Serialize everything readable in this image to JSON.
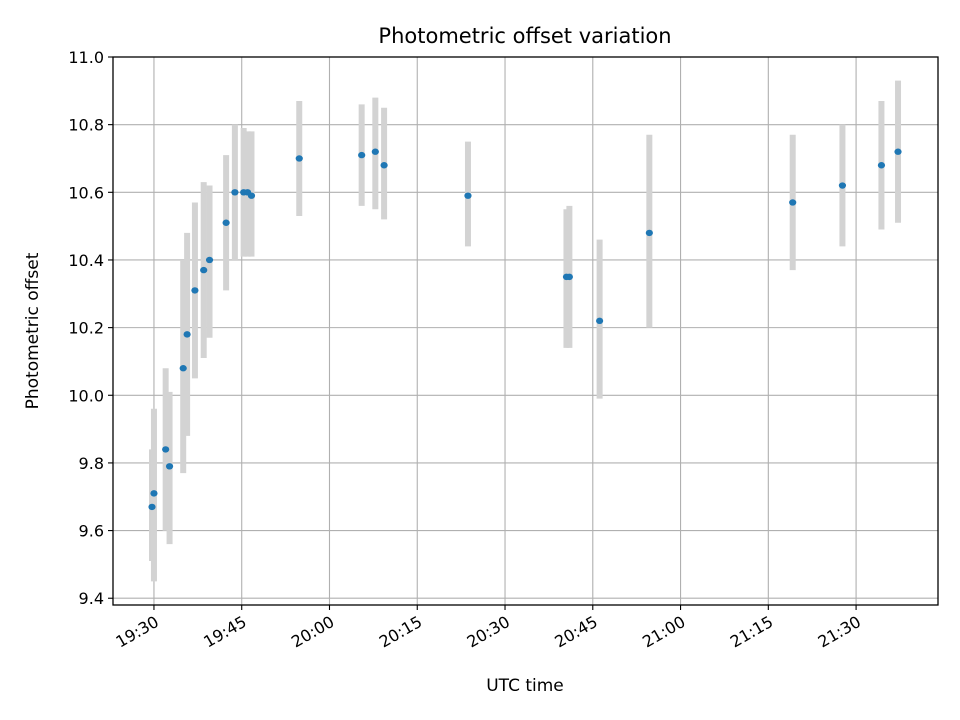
{
  "chart_data": {
    "type": "scatter",
    "title": "Photometric offset variation",
    "xlabel": "UTC time",
    "ylabel": "Photometric offset",
    "x_unit": "time of day (HH:MM)",
    "xlim": [
      "19:23",
      "21:44"
    ],
    "ylim": [
      9.38,
      11.0
    ],
    "x_ticks": [
      "19:30",
      "19:45",
      "20:00",
      "20:15",
      "20:30",
      "20:45",
      "21:00",
      "21:15",
      "21:30"
    ],
    "y_ticks": [
      "9.4",
      "9.6",
      "9.8",
      "10.0",
      "10.2",
      "10.4",
      "10.6",
      "10.8",
      "11.0"
    ],
    "y_tick_values": [
      9.4,
      9.6,
      9.8,
      10.0,
      10.2,
      10.4,
      10.6,
      10.8,
      11.0
    ],
    "grid": true,
    "legend": "none",
    "colors": {
      "point": "#1f77b4",
      "error_bar": "#d3d3d3",
      "grid": "#b0b0b0"
    },
    "points": [
      {
        "time": "19:29:40",
        "y": 9.67,
        "low": 9.51,
        "high": 9.84
      },
      {
        "time": "19:30:00",
        "y": 9.71,
        "low": 9.45,
        "high": 9.96
      },
      {
        "time": "19:32:00",
        "y": 9.84,
        "low": 9.6,
        "high": 10.08
      },
      {
        "time": "19:32:40",
        "y": 9.79,
        "low": 9.56,
        "high": 10.01
      },
      {
        "time": "19:35:00",
        "y": 10.08,
        "low": 9.77,
        "high": 10.4
      },
      {
        "time": "19:35:40",
        "y": 10.18,
        "low": 9.88,
        "high": 10.48
      },
      {
        "time": "19:37:00",
        "y": 10.31,
        "low": 10.05,
        "high": 10.57
      },
      {
        "time": "19:38:30",
        "y": 10.37,
        "low": 10.11,
        "high": 10.63
      },
      {
        "time": "19:39:30",
        "y": 10.4,
        "low": 10.17,
        "high": 10.62
      },
      {
        "time": "19:42:20",
        "y": 10.51,
        "low": 10.31,
        "high": 10.71
      },
      {
        "time": "19:43:50",
        "y": 10.6,
        "low": 10.4,
        "high": 10.8
      },
      {
        "time": "19:45:20",
        "y": 10.6,
        "low": 10.41,
        "high": 10.79
      },
      {
        "time": "19:46:00",
        "y": 10.6,
        "low": 10.41,
        "high": 10.78
      },
      {
        "time": "19:46:40",
        "y": 10.59,
        "low": 10.41,
        "high": 10.78
      },
      {
        "time": "19:54:50",
        "y": 10.7,
        "low": 10.53,
        "high": 10.87
      },
      {
        "time": "20:05:30",
        "y": 10.71,
        "low": 10.56,
        "high": 10.86
      },
      {
        "time": "20:07:50",
        "y": 10.72,
        "low": 10.55,
        "high": 10.88
      },
      {
        "time": "20:09:20",
        "y": 10.68,
        "low": 10.52,
        "high": 10.85
      },
      {
        "time": "20:23:40",
        "y": 10.59,
        "low": 10.44,
        "high": 10.75
      },
      {
        "time": "20:40:30",
        "y": 10.35,
        "low": 10.14,
        "high": 10.55
      },
      {
        "time": "20:41:00",
        "y": 10.35,
        "low": 10.14,
        "high": 10.56
      },
      {
        "time": "20:46:10",
        "y": 10.22,
        "low": 9.99,
        "high": 10.46
      },
      {
        "time": "20:54:40",
        "y": 10.48,
        "low": 10.2,
        "high": 10.77
      },
      {
        "time": "21:19:10",
        "y": 10.57,
        "low": 10.37,
        "high": 10.77
      },
      {
        "time": "21:27:40",
        "y": 10.62,
        "low": 10.44,
        "high": 10.8
      },
      {
        "time": "21:34:20",
        "y": 10.68,
        "low": 10.49,
        "high": 10.87
      },
      {
        "time": "21:37:10",
        "y": 10.72,
        "low": 10.51,
        "high": 10.93
      }
    ]
  }
}
